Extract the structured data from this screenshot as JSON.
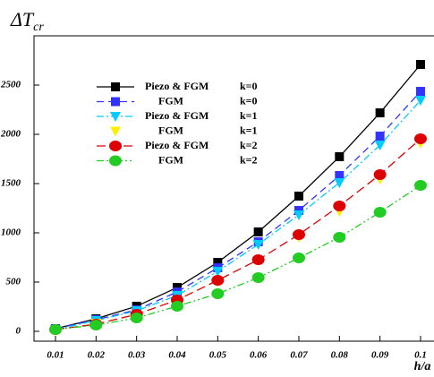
{
  "chart_data": {
    "type": "line",
    "title": "ΔT",
    "title_sub": "cr",
    "xlabel": "h/a",
    "x": [
      0.01,
      0.02,
      0.03,
      0.04,
      0.05,
      0.06,
      0.07,
      0.08,
      0.09,
      0.1
    ],
    "xlim": [
      0.005,
      0.105
    ],
    "xticks": [
      0.01,
      0.02,
      0.03,
      0.04,
      0.05,
      0.06,
      0.07,
      0.08,
      0.09,
      0.1
    ],
    "ylim": [
      -100,
      3000
    ],
    "yticks": [
      0,
      500,
      1000,
      1500,
      2000,
      2500
    ],
    "legend": "upper left",
    "series": [
      {
        "name": "Piezo & FGM",
        "k": "k=0",
        "color": "#000000",
        "marker": "square",
        "dash": "",
        "values": [
          27,
          127,
          255,
          445,
          700,
          1009,
          1373,
          1773,
          2218,
          2709
        ]
      },
      {
        "name": "FGM",
        "k": "k=0",
        "color": "#3333ff",
        "marker": "square",
        "dash": "8 5",
        "values": [
          27,
          118,
          218,
          400,
          645,
          909,
          1227,
          1582,
          1982,
          2436
        ]
      },
      {
        "name": "Piezo & FGM",
        "k": "k=1",
        "color": "#00ccff",
        "marker": "triangle",
        "dash": "8 3 2 3",
        "values": [
          18,
          109,
          209,
          364,
          609,
          882,
          1182,
          1509,
          1891,
          2345
        ]
      },
      {
        "name": "FGM",
        "k": "k=1",
        "color": "#ffee00",
        "marker": "triangle",
        "dash": "none",
        "values": [
          9,
          82,
          164,
          300,
          500,
          718,
          955,
          1218,
          1545,
          1909
        ]
      },
      {
        "name": "Piezo & FGM",
        "k": "k=2",
        "color": "#dd0000",
        "marker": "circle",
        "dash": "10 5",
        "values": [
          18,
          73,
          173,
          318,
          518,
          727,
          982,
          1273,
          1591,
          1955
        ]
      },
      {
        "name": "FGM",
        "k": "k=2",
        "color": "#22cc22",
        "marker": "circle",
        "dash": "8 3 2 3 2 3",
        "values": [
          18,
          64,
          136,
          255,
          382,
          545,
          745,
          955,
          1209,
          1482
        ]
      }
    ]
  }
}
